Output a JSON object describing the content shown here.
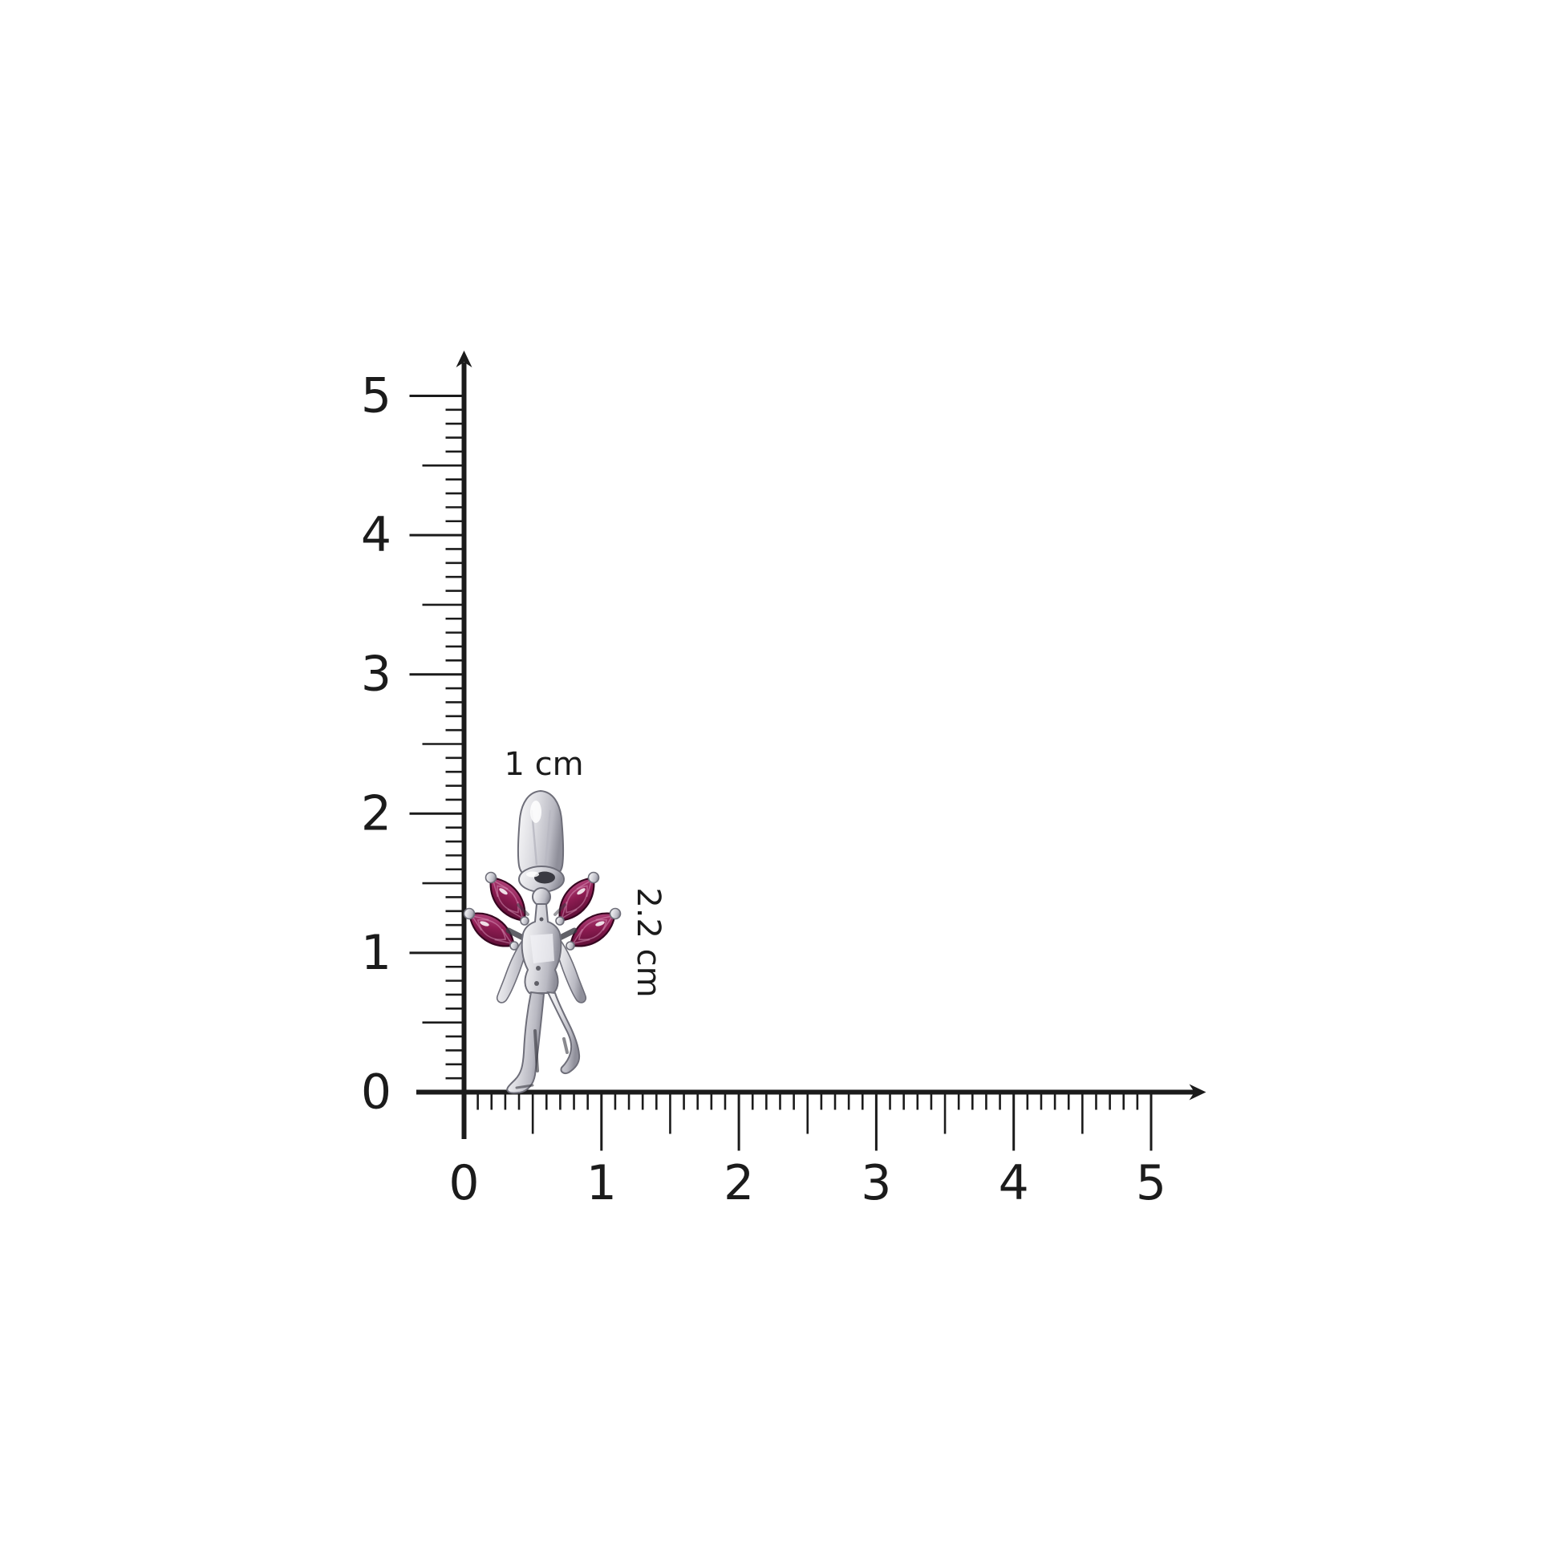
{
  "page": {
    "background_color": "#ffffff"
  },
  "ruler": {
    "x_axis": {
      "min": 0,
      "max": 5,
      "minor_step": 0.1,
      "mid_step": 0.5,
      "major_step": 1,
      "labels": [
        "0",
        "1",
        "2",
        "3",
        "4",
        "5"
      ]
    },
    "y_axis": {
      "min": 0,
      "max": 5,
      "minor_step": 0.1,
      "mid_step": 0.5,
      "major_step": 1,
      "labels": [
        "0",
        "1",
        "2",
        "3",
        "4",
        "5"
      ]
    }
  },
  "annotations": {
    "width_label": "1 cm",
    "height_label": "2.2 cm"
  },
  "colors": {
    "axis": "#1b1b1b",
    "label_text": "#1b1b1b",
    "silver_light": "#fafafb",
    "silver_mid": "#dcdce1",
    "silver_shade": "#b9b9c2",
    "silver_dark": "#8f8f9a",
    "silver_outline": "#6e6e79",
    "detail_dark": "#3a3a42",
    "ruby_light": "#c45c92",
    "ruby_mid": "#8e1c52",
    "ruby_dark": "#4a092b",
    "ruby_edge": "#360620"
  }
}
